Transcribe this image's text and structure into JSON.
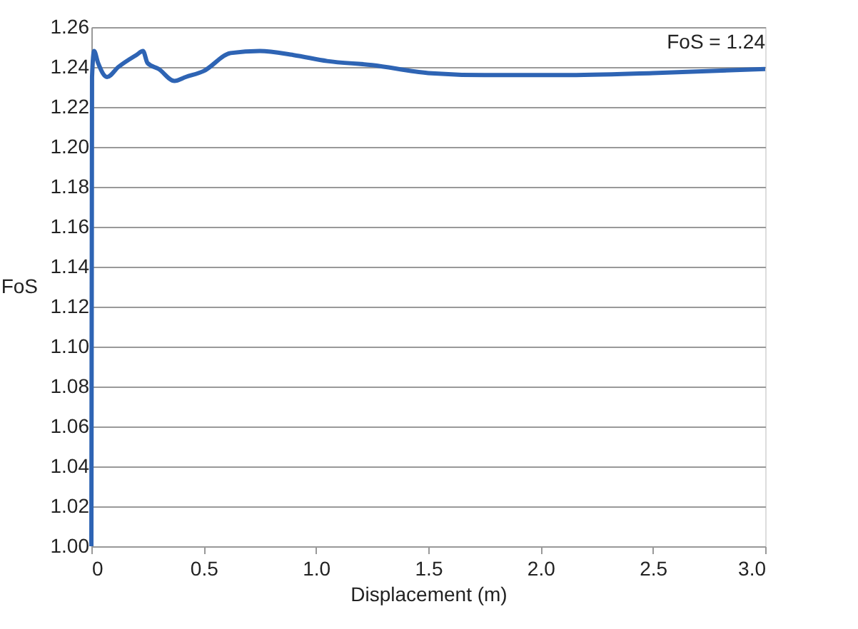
{
  "chart_data": {
    "type": "line",
    "xlabel": "Displacement (m)",
    "ylabel": "FoS",
    "annotations": [
      "FoS = 1.24"
    ],
    "x": [
      0,
      0.003,
      0.012,
      0.03,
      0.07,
      0.12,
      0.2,
      0.23,
      0.25,
      0.3,
      0.37,
      0.42,
      0.5,
      0.62,
      0.75,
      0.9,
      1.05,
      1.25,
      1.5,
      1.75,
      2.1,
      2.5,
      3.0
    ],
    "series": [
      {
        "color": "#2e64b4",
        "values": [
          1.0,
          1.235,
          1.248,
          1.242,
          1.235,
          1.24,
          1.246,
          1.248,
          1.242,
          1.239,
          1.233,
          1.235,
          1.238,
          1.247,
          1.248,
          1.246,
          1.243,
          1.241,
          1.237,
          1.236,
          1.236,
          1.237,
          1.239
        ]
      }
    ],
    "xlim": [
      0,
      3.0
    ],
    "xticks": [
      0,
      {
        "value": 0.5,
        "label": "0.5"
      },
      {
        "value": 1.0,
        "label": "1.0"
      },
      {
        "value": 1.5,
        "label": "1.5"
      },
      {
        "value": 2.0,
        "label": "2.0"
      },
      {
        "value": 2.5,
        "label": "2.5"
      },
      {
        "value": 3.0,
        "label": "3.0"
      }
    ],
    "ylim": [
      1.0,
      1.26
    ],
    "yticks": [
      {
        "value": 1.0,
        "label": "1.00"
      },
      1.02,
      1.04,
      1.06,
      1.08,
      {
        "value": 1.1,
        "label": "1.10"
      },
      1.12,
      1.14,
      1.16,
      1.18,
      {
        "value": 1.2,
        "label": "1.20"
      },
      1.22,
      1.24,
      1.26
    ],
    "grid": "y",
    "marker": "none",
    "line_style": "solid"
  }
}
